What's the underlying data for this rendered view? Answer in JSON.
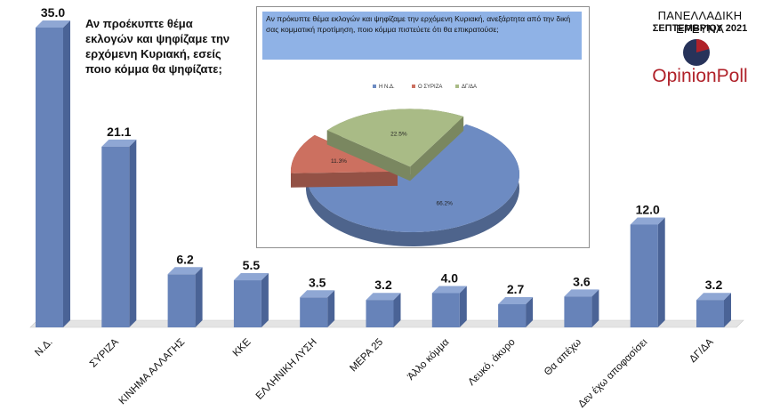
{
  "question": "Αν προέκυπτε θέμα εκλογών και ψηφίζαμε την ερχόμενη Κυριακή, εσείς ποιο κόμμα θα ψηφίζατε;",
  "header": {
    "survey_title": "ΠΑΝΕΛΛΑΔΙΚΗ ΕΡΕΥΝΑ",
    "survey_date": "ΣΕΠΤΕΜΒΡΙΟΥ 2021",
    "brand": "OpinionPoll"
  },
  "colors": {
    "bar_face": "#6783b9",
    "bar_side": "#4a6396",
    "bar_top": "#8fa7d4",
    "pie_nd": "#6d8bc2",
    "pie_syriza": "#cc7060",
    "pie_dgda": "#a9bb86",
    "brand_red": "#b0222a",
    "brand_navy": "#27335a"
  },
  "chart_data": [
    {
      "type": "bar",
      "categories": [
        "Ν.Δ.",
        "ΣΥΡΙΖΑ",
        "ΚΙΝΗΜΑ ΑΛΛΑΓΗΣ",
        "ΚΚΕ",
        "ΕΛΛΗΝΙΚΗ ΛΥΣΗ",
        "ΜΕΡΑ 25",
        "Άλλο κόμμα",
        "Λευκό, άκυρο",
        "Θα απέχω",
        "Δεν έχω αποφασίσει",
        "ΔΓ/ΔΑ"
      ],
      "values": [
        35.0,
        21.1,
        6.2,
        5.5,
        3.5,
        3.2,
        4.0,
        2.7,
        3.6,
        12.0,
        3.2
      ],
      "value_labels": [
        "35.0",
        "21.1",
        "6.2",
        "5.5",
        "3.5",
        "3.2",
        "4.0",
        "2.7",
        "3.6",
        "12.0",
        "3.2"
      ],
      "title": "Αν προέκυπτε θέμα εκλογών και ψηφίζαμε την ερχόμενη Κυριακή, εσείς ποιο κόμμα θα ψηφίζατε;",
      "xlabel": "",
      "ylabel": "",
      "ylim": [
        0,
        35
      ],
      "style": "3d"
    },
    {
      "type": "pie",
      "title": "Αν πρόκυπτε θέμα εκλογών και ψηφίζαμε την ερχόμενη Κυριακή, ανεξάρτητα από την δική σας κομματική προτίμηση, ποιο κόμμα πιστεύετε ότι θα επικρατούσε;",
      "labels": [
        "Η Ν.Δ.",
        "Ο ΣΥΡΙΖΑ",
        "ΔΓ/ΔΑ"
      ],
      "values": [
        66.2,
        11.3,
        22.5
      ],
      "value_labels": [
        "66.2%",
        "11.3%",
        "22.5%"
      ],
      "legend": "top",
      "style": "3d exploded"
    }
  ]
}
